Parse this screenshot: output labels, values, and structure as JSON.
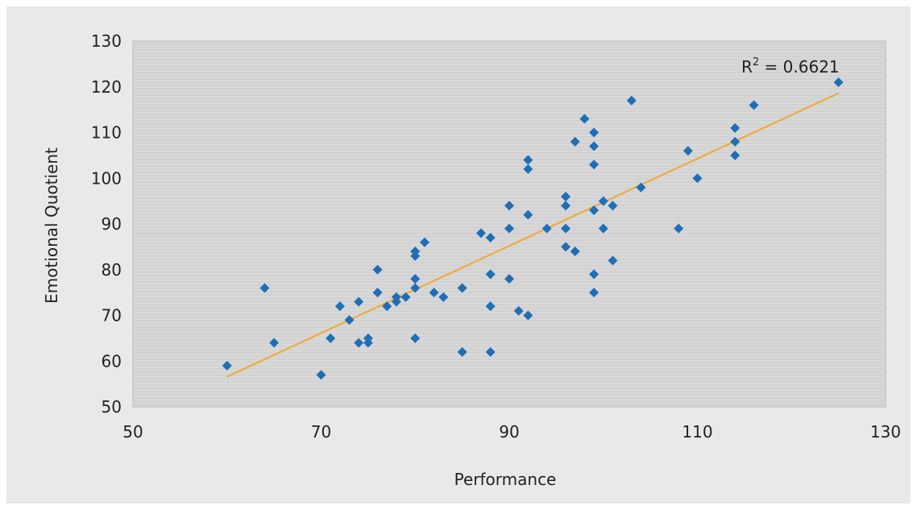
{
  "chart_data": {
    "type": "scatter",
    "xlabel": "Performance",
    "ylabel": "Emotional Quotient",
    "xlim": [
      50,
      130
    ],
    "ylim": [
      50,
      130
    ],
    "x_ticks": [
      50,
      70,
      90,
      110,
      130
    ],
    "y_ticks": [
      50,
      60,
      70,
      80,
      90,
      100,
      110,
      120,
      130
    ],
    "grid": false,
    "annotation": {
      "r2_prefix": "R",
      "r2_sup": "2",
      "r2_suffix": " = 0.6621"
    },
    "trendline": {
      "from": [
        60,
        56.6
      ],
      "to": [
        125,
        118.6
      ],
      "color": "#f0a830"
    },
    "marker_color": "#1e6fb5",
    "plot_background": "#d8d8d8",
    "card_background": "#e9e9e9",
    "points": [
      [
        60,
        59
      ],
      [
        64,
        76
      ],
      [
        65,
        64
      ],
      [
        70,
        57
      ],
      [
        71,
        65
      ],
      [
        72,
        72
      ],
      [
        73,
        69
      ],
      [
        74,
        73
      ],
      [
        74,
        64
      ],
      [
        75,
        64
      ],
      [
        75,
        65
      ],
      [
        76,
        80
      ],
      [
        76,
        75
      ],
      [
        77,
        72
      ],
      [
        78,
        73
      ],
      [
        78,
        74
      ],
      [
        79,
        74
      ],
      [
        80,
        84
      ],
      [
        80,
        83
      ],
      [
        80,
        78
      ],
      [
        80,
        76
      ],
      [
        80,
        65
      ],
      [
        81,
        86
      ],
      [
        82,
        75
      ],
      [
        83,
        74
      ],
      [
        85,
        76
      ],
      [
        85,
        62
      ],
      [
        87,
        88
      ],
      [
        88,
        87
      ],
      [
        88,
        79
      ],
      [
        88,
        72
      ],
      [
        88,
        62
      ],
      [
        90,
        94
      ],
      [
        90,
        89
      ],
      [
        90,
        78
      ],
      [
        91,
        71
      ],
      [
        92,
        104
      ],
      [
        92,
        102
      ],
      [
        92,
        92
      ],
      [
        92,
        70
      ],
      [
        94,
        89
      ],
      [
        96,
        96
      ],
      [
        96,
        94
      ],
      [
        96,
        89
      ],
      [
        96,
        85
      ],
      [
        97,
        108
      ],
      [
        97,
        84
      ],
      [
        98,
        113
      ],
      [
        99,
        110
      ],
      [
        99,
        107
      ],
      [
        99,
        103
      ],
      [
        99,
        93
      ],
      [
        99,
        79
      ],
      [
        99,
        75
      ],
      [
        100,
        95
      ],
      [
        100,
        89
      ],
      [
        101,
        94
      ],
      [
        101,
        82
      ],
      [
        103,
        117
      ],
      [
        104,
        98
      ],
      [
        108,
        89
      ],
      [
        109,
        106
      ],
      [
        110,
        100
      ],
      [
        114,
        111
      ],
      [
        114,
        108
      ],
      [
        114,
        105
      ],
      [
        116,
        116
      ],
      [
        125,
        121
      ]
    ]
  }
}
